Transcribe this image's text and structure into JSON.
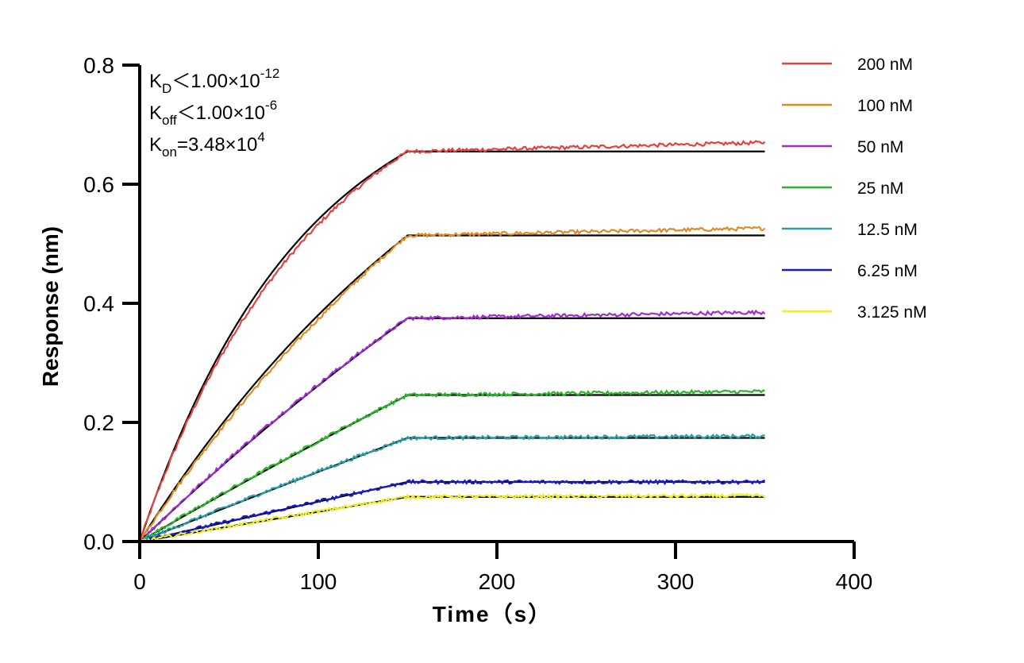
{
  "chart_data": {
    "type": "line",
    "title": "",
    "xlabel": "Time（s）",
    "ylabel": "Response (nm)",
    "xlim": [
      0,
      400
    ],
    "ylim": [
      0,
      0.8
    ],
    "x_ticks": [
      "0",
      "100",
      "200",
      "300",
      "400"
    ],
    "y_ticks": [
      "0.0",
      "0.2",
      "0.4",
      "0.6",
      "0.8"
    ],
    "grid": false,
    "legend_position": "top-right",
    "association_end": 150,
    "dissociation_end": 350,
    "fit_color": "#000000",
    "series": [
      {
        "name": "200 nM",
        "color": "#e8413c",
        "plateau": 0.655,
        "end": 0.67
      },
      {
        "name": "100 nM",
        "color": "#e6891e",
        "plateau": 0.514,
        "end": 0.526
      },
      {
        "name": "50 nM",
        "color": "#a22cd6",
        "plateau": 0.375,
        "end": 0.385
      },
      {
        "name": "25 nM",
        "color": "#2bb52b",
        "plateau": 0.246,
        "end": 0.252
      },
      {
        "name": "12.5 nM",
        "color": "#26a0a8",
        "plateau": 0.174,
        "end": 0.177
      },
      {
        "name": "6.25 nM",
        "color": "#1a1ad0",
        "plateau": 0.1,
        "end": 0.1
      },
      {
        "name": "3.125 nM",
        "color": "#f0f01e",
        "plateau": 0.075,
        "end": 0.077
      }
    ],
    "annotations": {
      "kd": {
        "base": "K",
        "sub": "D",
        "rest": "＜1.00×10",
        "sup": "-12"
      },
      "koff": {
        "base": "K",
        "sub": "off",
        "rest": "＜1.00×10",
        "sup": "-6"
      },
      "kon": {
        "base": "K",
        "sub": "on",
        "rest": "=3.48×10",
        "sup": "4"
      }
    }
  }
}
